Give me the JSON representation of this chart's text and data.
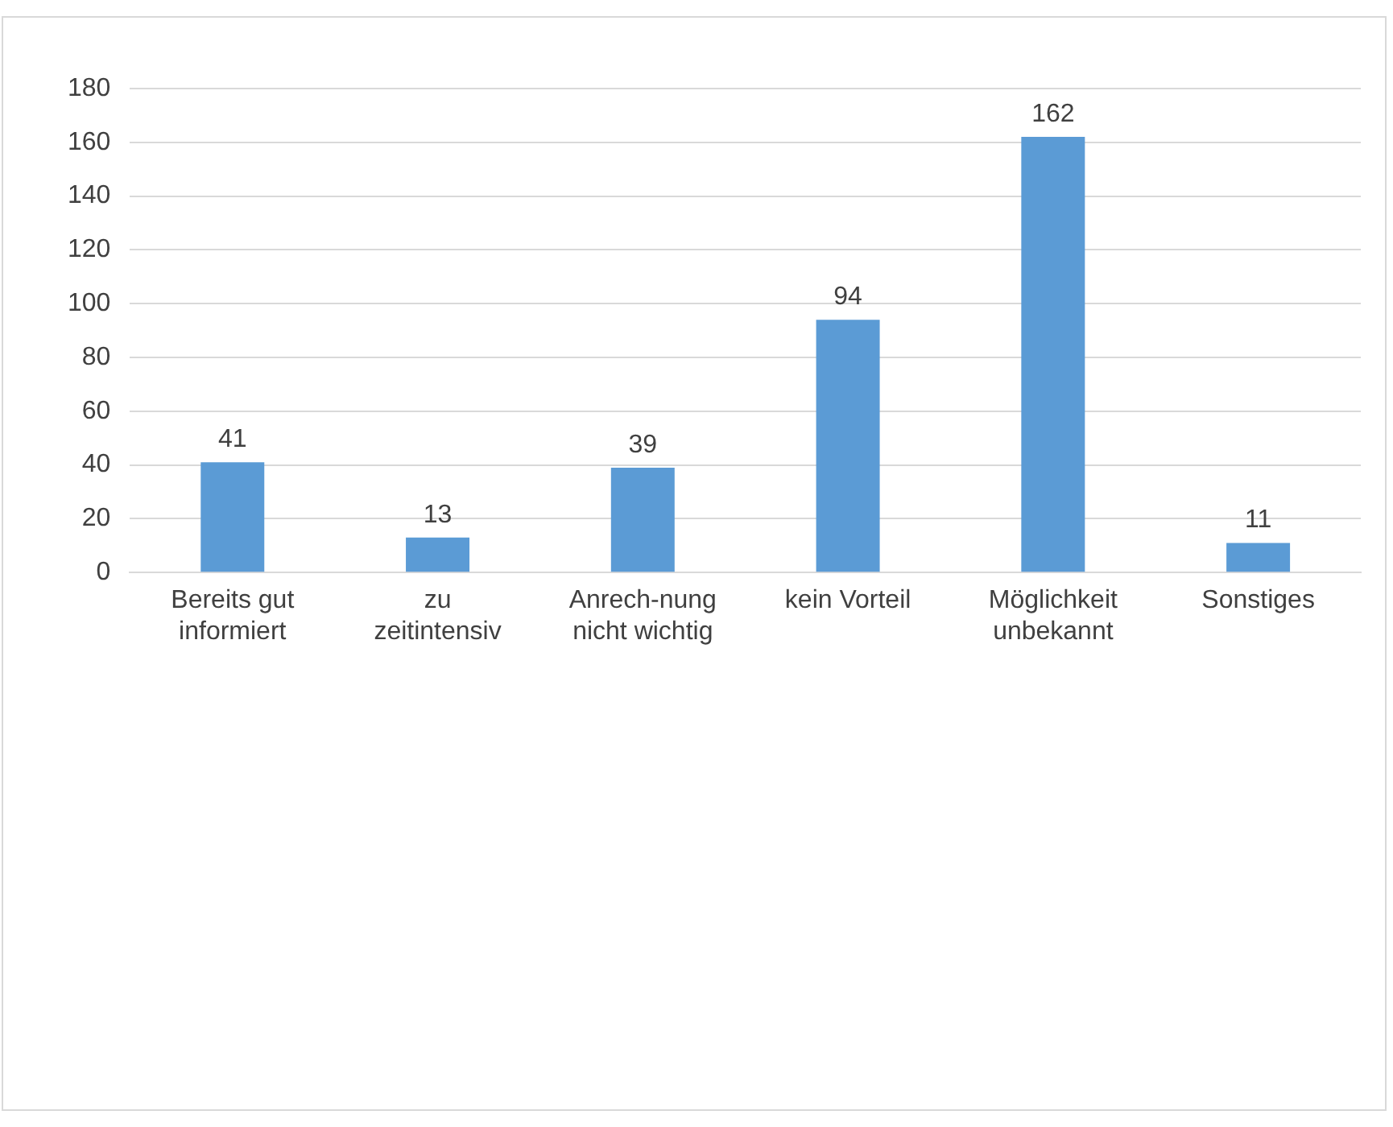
{
  "chart_data": {
    "type": "bar",
    "categories": [
      "Bereits gut informiert",
      "zu zeitintensiv",
      "Anrech-nung nicht wichtig",
      "kein Vorteil",
      "Möglichkeit unbekannt",
      "Sonstiges"
    ],
    "values": [
      41,
      13,
      39,
      94,
      162,
      11
    ],
    "color": "#5b9bd5",
    "ylim": [
      0,
      180
    ],
    "yticks": [
      0,
      20,
      40,
      60,
      80,
      100,
      120,
      140,
      160,
      180
    ],
    "grid": "y",
    "data_labels": true,
    "legend": false
  }
}
